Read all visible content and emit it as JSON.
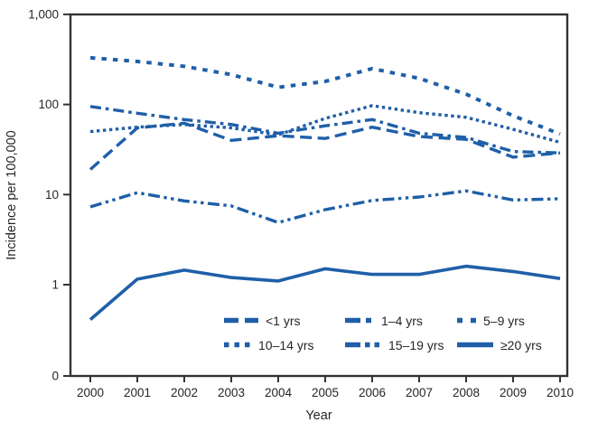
{
  "chart_data": {
    "type": "line",
    "title": "",
    "xlabel": "Year",
    "ylabel": "Incidence per 100,000",
    "y_scale": "log",
    "grid": false,
    "legend_position": "inside-bottom",
    "line_color": "#1f5fa8",
    "axis_color": "#333333",
    "y_ticks": [
      "1,000",
      "100",
      "10",
      "1",
      "0"
    ],
    "y_tick_values": [
      1000,
      100,
      10,
      1,
      0
    ],
    "ylim": [
      0,
      1000
    ],
    "x": [
      2000,
      2001,
      2002,
      2003,
      2004,
      2005,
      2006,
      2007,
      2008,
      2009,
      2010
    ],
    "series": [
      {
        "name": "<1 yrs",
        "dash": "long-dash",
        "values": [
          19,
          55,
          62,
          40,
          45,
          42,
          56,
          44,
          41,
          26,
          29
        ]
      },
      {
        "name": "1–4 yrs",
        "dash": "dash-dot",
        "values": [
          95,
          80,
          68,
          60,
          48,
          58,
          68,
          48,
          43,
          30,
          29
        ]
      },
      {
        "name": "5–9 yrs",
        "dash": "sparse-dot",
        "values": [
          330,
          300,
          265,
          215,
          155,
          180,
          250,
          195,
          130,
          75,
          47
        ]
      },
      {
        "name": "10–14 yrs",
        "dash": "dot",
        "values": [
          50,
          56,
          60,
          55,
          46,
          70,
          97,
          81,
          72,
          53,
          38
        ]
      },
      {
        "name": "15–19 yrs",
        "dash": "dash-dot-dot",
        "values": [
          7.3,
          10.5,
          8.5,
          7.5,
          4.9,
          6.8,
          8.6,
          9.4,
          11,
          8.7,
          9
        ]
      },
      {
        "name": "≥20 yrs",
        "dash": "solid",
        "values": [
          0.41,
          1.15,
          1.45,
          1.2,
          1.1,
          1.5,
          1.3,
          1.3,
          1.6,
          1.4,
          1.17
        ]
      }
    ],
    "legend_rows": [
      [
        "<1 yrs",
        "1–4 yrs",
        "5–9 yrs"
      ],
      [
        "10–14 yrs",
        "15–19 yrs",
        "≥20 yrs"
      ]
    ]
  }
}
